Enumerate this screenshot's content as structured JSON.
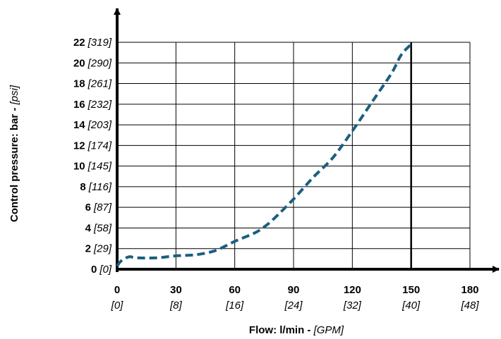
{
  "chart_data": {
    "type": "line",
    "xlabel": "Flow: l/min",
    "xlabel_separator": " - ",
    "xlabel_alt": "[GPM]",
    "ylabel": "Control pressure: bar",
    "ylabel_separator": " - ",
    "ylabel_alt": "[psi]",
    "xlim": [
      0,
      180
    ],
    "ylim": [
      0,
      22
    ],
    "grid": true,
    "x_ticks": [
      {
        "value": 0,
        "label": "0",
        "alt": "[0]"
      },
      {
        "value": 30,
        "label": "30",
        "alt": "[8]"
      },
      {
        "value": 60,
        "label": "60",
        "alt": "[16]"
      },
      {
        "value": 90,
        "label": "90",
        "alt": "[24]"
      },
      {
        "value": 120,
        "label": "120",
        "alt": "[32]"
      },
      {
        "value": 150,
        "label": "150",
        "alt": "[40]"
      },
      {
        "value": 180,
        "label": "180",
        "alt": "[48]"
      }
    ],
    "y_ticks": [
      {
        "value": 0,
        "label": "0",
        "alt": "[0]"
      },
      {
        "value": 2,
        "label": "2",
        "alt": "[29]"
      },
      {
        "value": 4,
        "label": "4",
        "alt": "[58]"
      },
      {
        "value": 6,
        "label": "6",
        "alt": "[87]"
      },
      {
        "value": 8,
        "label": "8",
        "alt": "[116]"
      },
      {
        "value": 10,
        "label": "10",
        "alt": "[145]"
      },
      {
        "value": 12,
        "label": "12",
        "alt": "[174]"
      },
      {
        "value": 14,
        "label": "14",
        "alt": "[203]"
      },
      {
        "value": 16,
        "label": "16",
        "alt": "[232]"
      },
      {
        "value": 18,
        "label": "18",
        "alt": "[261]"
      },
      {
        "value": 20,
        "label": "20",
        "alt": "[290]"
      },
      {
        "value": 22,
        "label": "22",
        "alt": "[319]"
      }
    ],
    "highlight_x": 150,
    "series": [
      {
        "color": "#1b5f80",
        "style": "dashed",
        "x": [
          0,
          2,
          6,
          10,
          20,
          30,
          40,
          50,
          60,
          70,
          75,
          80,
          90,
          100,
          110,
          120,
          130,
          140,
          145,
          150
        ],
        "y": [
          0.3,
          0.8,
          1.2,
          1.1,
          1.1,
          1.3,
          1.4,
          1.8,
          2.7,
          3.5,
          4.1,
          4.9,
          6.8,
          8.9,
          10.8,
          13.4,
          16.2,
          19.0,
          20.8,
          21.8
        ]
      }
    ]
  }
}
